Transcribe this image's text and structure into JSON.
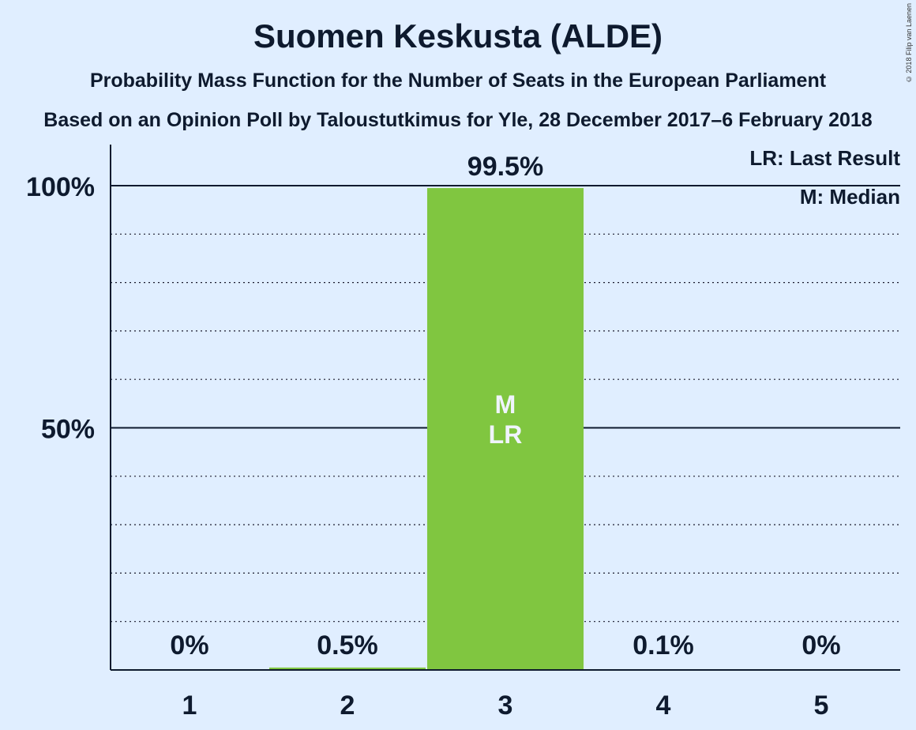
{
  "chart_data": {
    "type": "bar",
    "title": "Suomen Keskusta (ALDE)",
    "subtitle": "Probability Mass Function for the Number of Seats in the European Parliament",
    "subtitle2": "Based on an Opinion Poll by Taloustutkimus for Yle, 28 December 2017–6 February 2018",
    "categories": [
      "1",
      "2",
      "3",
      "4",
      "5"
    ],
    "values": [
      0,
      0.5,
      99.5,
      0.1,
      0
    ],
    "value_labels": [
      "0%",
      "0.5%",
      "99.5%",
      "0.1%",
      "0%"
    ],
    "ylim": [
      0,
      108
    ],
    "ytick_labels": [
      {
        "value": 50,
        "label": "50%"
      },
      {
        "value": 100,
        "label": "100%"
      }
    ],
    "minor_gridlines": [
      10,
      20,
      30,
      40,
      60,
      70,
      80,
      90
    ],
    "median_index": 2,
    "last_result_index": 2,
    "bar_markers": [
      "M",
      "LR"
    ],
    "legend": {
      "position": "top-right",
      "entries": [
        "LR: Last Result",
        "M: Median"
      ]
    },
    "bar_color": "#80c640"
  },
  "copyright": "© 2018 Filip van Laenen"
}
